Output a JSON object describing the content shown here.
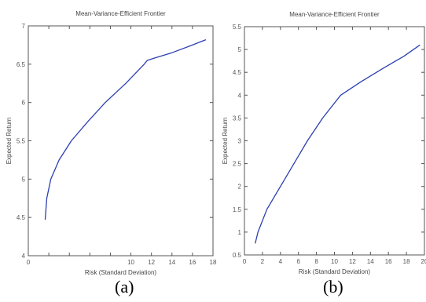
{
  "chart_data": [
    {
      "type": "line",
      "title": "Mean-Variance-Efficient Frontier",
      "xlabel": "Risk (Standard Deviation)",
      "ylabel": "Expected Return",
      "xlim": [
        0,
        18
      ],
      "ylim": [
        4,
        7
      ],
      "x_ticks": [
        0,
        2,
        4,
        6,
        8,
        10,
        12,
        14,
        16,
        18
      ],
      "x_tick_labels": [
        "0",
        "",
        "",
        "",
        "",
        "10",
        "12",
        "14",
        "16",
        "18"
      ],
      "y_ticks": [
        4,
        4.5,
        5,
        5.5,
        6,
        6.5,
        7
      ],
      "y_tick_labels": [
        "4",
        "4.5",
        "5",
        "5.5",
        "6",
        "6.5",
        "7"
      ],
      "grid": false,
      "series": [
        {
          "color": "#2b3fb0",
          "x": [
            1.65,
            1.8,
            2.2,
            3.0,
            4.2,
            5.8,
            7.5,
            9.5,
            11.3,
            11.6,
            12.3,
            14.0,
            16.0,
            17.3
          ],
          "y": [
            4.47,
            4.75,
            5.0,
            5.25,
            5.5,
            5.75,
            6.0,
            6.25,
            6.5,
            6.55,
            6.58,
            6.65,
            6.75,
            6.82
          ]
        }
      ],
      "panel_label": "(a)"
    },
    {
      "type": "line",
      "title": "Mean-Variance-Efficient Frontier",
      "xlabel": "Risk (Standard Deviation)",
      "ylabel": "Expected Return",
      "xlim": [
        0,
        20
      ],
      "ylim": [
        0.5,
        5.5
      ],
      "x_ticks": [
        0,
        2,
        4,
        6,
        8,
        10,
        12,
        14,
        16,
        18,
        20
      ],
      "x_tick_labels": [
        "0",
        "2",
        "4",
        "6",
        "8",
        "10",
        "12",
        "14",
        "16",
        "18",
        "20"
      ],
      "y_ticks": [
        0.5,
        1,
        1.5,
        2,
        2.5,
        3,
        3.5,
        4,
        4.5,
        5,
        5.5
      ],
      "y_tick_labels": [
        "0.5",
        "1",
        "1.5",
        "2",
        "2.5",
        "3",
        "3.5",
        "4",
        "4.5",
        "5",
        "5.5"
      ],
      "grid": false,
      "series": [
        {
          "color": "#2b3fb0",
          "x": [
            1.2,
            1.5,
            2.5,
            4.0,
            5.5,
            7.0,
            8.7,
            10.7,
            13.0,
            15.5,
            17.7,
            19.5
          ],
          "y": [
            0.75,
            1.0,
            1.5,
            2.0,
            2.5,
            3.0,
            3.5,
            4.0,
            4.3,
            4.6,
            4.85,
            5.1
          ]
        }
      ],
      "panel_label": "(b)"
    }
  ]
}
